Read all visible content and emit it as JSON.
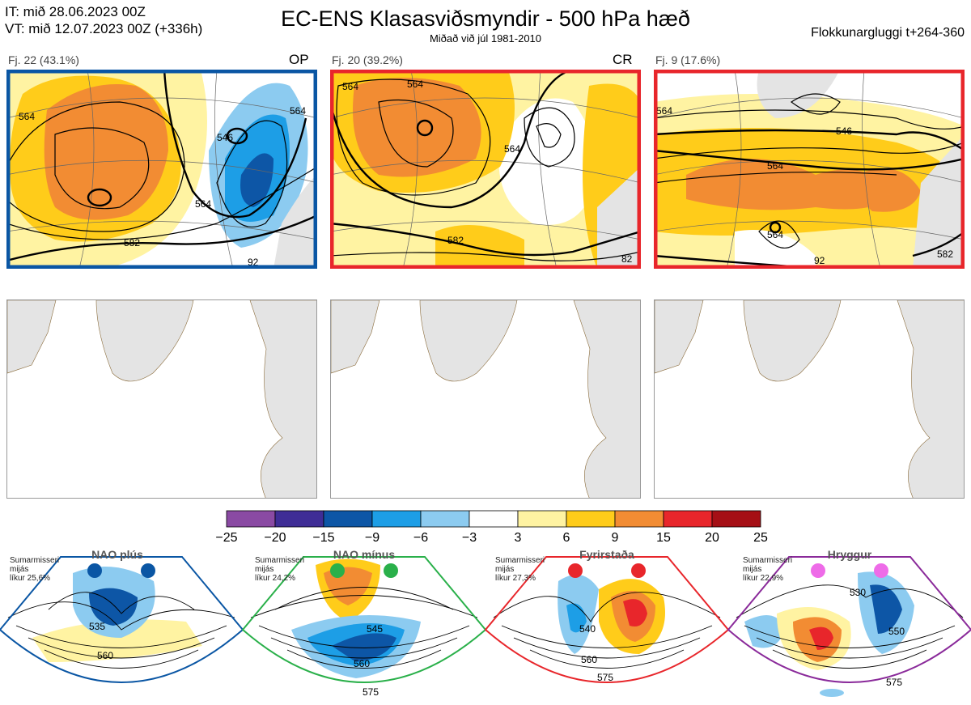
{
  "header": {
    "it_line": "IT: mið 28.06.2023 00Z",
    "vt_line": "VT: mið 12.07.2023 00Z  (+336h)",
    "title": "EC-ENS Klasasviðsmyndir - 500 hPa hæð",
    "subtitle": "Miðað við júl 1981-2010",
    "window": "Flokkunargluggi t+264-360"
  },
  "clusters": [
    {
      "label": "Fj. 22 (43.1%)",
      "code": "OP",
      "frame_color": "#0a56a4",
      "contours": [
        "564",
        "546",
        "564",
        "582",
        "564",
        "92"
      ]
    },
    {
      "label": "Fj. 20 (39.2%)",
      "code": "CR",
      "frame_color": "#e8262b",
      "contours": [
        "564",
        "564",
        "564",
        "582",
        "82"
      ]
    },
    {
      "label": "Fj. 9 (17.6%)",
      "code": "",
      "frame_color": "#e8262b",
      "contours": [
        "564",
        "546",
        "564",
        "564",
        "92",
        "582"
      ]
    }
  ],
  "colorbar": {
    "ticks": [
      "−25",
      "−20",
      "−15",
      "−9",
      "−6",
      "−3",
      "3",
      "6",
      "9",
      "15",
      "20",
      "25"
    ],
    "colors": [
      "#8a4aa3",
      "#3f2d96",
      "#0d56a6",
      "#1d9ee6",
      "#8ccbf0",
      "#ffffff",
      "#fff3a2",
      "#ffcc1a",
      "#f28c33",
      "#e8262b",
      "#a50f15"
    ]
  },
  "regimes": [
    {
      "name": "NAO plús",
      "season": "Sumarmisseri",
      "ref": "mijás",
      "prob": "líkur 25,6%",
      "color": "#0a56a4",
      "labels": [
        "535",
        "560"
      ]
    },
    {
      "name": "NAO mínus",
      "season": "Sumarmisseri",
      "ref": "mijás",
      "prob": "líkur 24,2%",
      "color": "#2ab04a",
      "labels": [
        "545",
        "560",
        "575"
      ]
    },
    {
      "name": "Fyrirstaða",
      "season": "Sumarmisseri",
      "ref": "mijás",
      "prob": "líkur 27,3%",
      "color": "#e8262b",
      "labels": [
        "540",
        "560",
        "575"
      ]
    },
    {
      "name": "Hryggur",
      "season": "Sumarmisseri",
      "ref": "mijás",
      "prob": "líkur 22,9%",
      "color": "#ee6be8",
      "labels": [
        "530",
        "550",
        "575"
      ]
    }
  ]
}
